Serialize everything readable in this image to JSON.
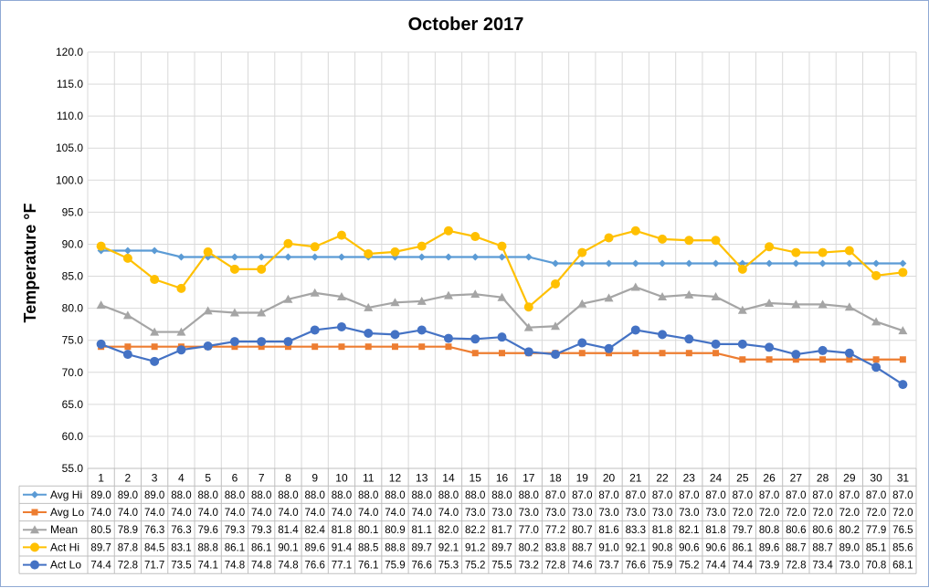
{
  "chart_data": {
    "type": "line",
    "title": "October 2017",
    "xlabel": "",
    "ylabel": "Temperature °F",
    "ylim": [
      55,
      120
    ],
    "yticks": [
      "55.0",
      "60.0",
      "65.0",
      "70.0",
      "75.0",
      "80.0",
      "85.0",
      "90.0",
      "95.0",
      "100.0",
      "105.0",
      "110.0",
      "115.0",
      "120.0"
    ],
    "grid": true,
    "legend": "data-table-left",
    "categories": [
      "1",
      "2",
      "3",
      "4",
      "5",
      "6",
      "7",
      "8",
      "9",
      "10",
      "11",
      "12",
      "13",
      "14",
      "15",
      "16",
      "17",
      "18",
      "19",
      "20",
      "21",
      "22",
      "23",
      "24",
      "25",
      "26",
      "27",
      "28",
      "29",
      "30",
      "31"
    ],
    "series": [
      {
        "name": "Avg Hi",
        "color": "#5b9bd5",
        "marker": "diamond",
        "values": [
          89.0,
          89.0,
          89.0,
          88.0,
          88.0,
          88.0,
          88.0,
          88.0,
          88.0,
          88.0,
          88.0,
          88.0,
          88.0,
          88.0,
          88.0,
          88.0,
          88.0,
          87.0,
          87.0,
          87.0,
          87.0,
          87.0,
          87.0,
          87.0,
          87.0,
          87.0,
          87.0,
          87.0,
          87.0,
          87.0,
          87.0
        ]
      },
      {
        "name": "Avg Lo",
        "color": "#ed7d31",
        "marker": "square",
        "values": [
          74.0,
          74.0,
          74.0,
          74.0,
          74.0,
          74.0,
          74.0,
          74.0,
          74.0,
          74.0,
          74.0,
          74.0,
          74.0,
          74.0,
          73.0,
          73.0,
          73.0,
          73.0,
          73.0,
          73.0,
          73.0,
          73.0,
          73.0,
          73.0,
          72.0,
          72.0,
          72.0,
          72.0,
          72.0,
          72.0,
          72.0
        ]
      },
      {
        "name": "Mean",
        "color": "#a5a5a5",
        "marker": "triangle",
        "values": [
          80.5,
          78.9,
          76.3,
          76.3,
          79.6,
          79.3,
          79.3,
          81.4,
          82.4,
          81.8,
          80.1,
          80.9,
          81.1,
          82.0,
          82.2,
          81.7,
          77.0,
          77.2,
          80.7,
          81.6,
          83.3,
          81.8,
          82.1,
          81.8,
          79.7,
          80.8,
          80.6,
          80.6,
          80.2,
          77.9,
          76.5
        ]
      },
      {
        "name": "Act Hi",
        "color": "#ffc000",
        "marker": "circle",
        "values": [
          89.7,
          87.8,
          84.5,
          83.1,
          88.8,
          86.1,
          86.1,
          90.1,
          89.6,
          91.4,
          88.5,
          88.8,
          89.7,
          92.1,
          91.2,
          89.7,
          80.2,
          83.8,
          88.7,
          91.0,
          92.1,
          90.8,
          90.6,
          90.6,
          86.1,
          89.6,
          88.7,
          88.7,
          89.0,
          85.1,
          85.6
        ]
      },
      {
        "name": "Act Lo",
        "color": "#4472c4",
        "marker": "circle",
        "values": [
          74.4,
          72.8,
          71.7,
          73.5,
          74.1,
          74.8,
          74.8,
          74.8,
          76.6,
          77.1,
          76.1,
          75.9,
          76.6,
          75.3,
          75.2,
          75.5,
          73.2,
          72.8,
          74.6,
          73.7,
          76.6,
          75.9,
          75.2,
          74.4,
          74.4,
          73.9,
          72.8,
          73.4,
          73.0,
          70.8,
          68.1
        ]
      }
    ]
  }
}
